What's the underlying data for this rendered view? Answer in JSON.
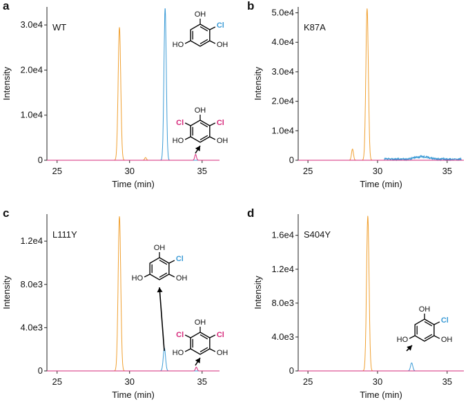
{
  "colors": {
    "orange": "#f0a030",
    "blue": "#3b9bd6",
    "magenta": "#d6287a",
    "axis": "#222222"
  },
  "molecules": {
    "monochloro": {
      "atoms": [
        "OH",
        "HO",
        "OH"
      ],
      "cl": "Cl"
    },
    "dichloro": {
      "atoms": [
        "OH",
        "HO",
        "OH"
      ],
      "cl1": "Cl",
      "cl2": "Cl"
    }
  },
  "chart_data": [
    {
      "panel": "a",
      "variant": "WT",
      "type": "line",
      "xlabel": "Time (min)",
      "ylabel": "Intensity",
      "xlim": [
        24.3,
        36.2
      ],
      "ylim": [
        0,
        34000
      ],
      "xticks": [
        25,
        30,
        35
      ],
      "xtick_labels": [
        "25",
        "30",
        "35"
      ],
      "yticks": [
        0,
        10000,
        20000,
        30000
      ],
      "ytick_labels": [
        "0",
        "1.0e4",
        "2.0e4",
        "3.0e4"
      ],
      "series": [
        {
          "name": "orange",
          "color": "#f0a030",
          "peaks": [
            [
              29.3,
              29500,
              0.09
            ],
            [
              31.1,
              600,
              0.06
            ]
          ]
        },
        {
          "name": "blue",
          "color": "#3b9bd6",
          "peaks": [
            [
              32.45,
              33800,
              0.08
            ]
          ]
        },
        {
          "name": "magenta",
          "color": "#d6287a",
          "peaks": [
            [
              34.55,
              1300,
              0.06
            ]
          ]
        }
      ]
    },
    {
      "panel": "b",
      "variant": "K87A",
      "type": "line",
      "xlabel": "Time (min)",
      "ylabel": "Intensity",
      "xlim": [
        24.3,
        36.2
      ],
      "ylim": [
        0,
        52000
      ],
      "xticks": [
        25,
        30,
        35
      ],
      "xtick_labels": [
        "25",
        "30",
        "35"
      ],
      "yticks": [
        0,
        10000,
        20000,
        30000,
        40000,
        50000
      ],
      "ytick_labels": [
        "0",
        "1.0e4",
        "2.0e4",
        "3.0e4",
        "4.0e4",
        "5.0e4"
      ],
      "series": [
        {
          "name": "orange",
          "color": "#f0a030",
          "peaks": [
            [
              29.25,
              51500,
              0.09
            ],
            [
              28.2,
              3800,
              0.07
            ]
          ]
        },
        {
          "name": "blue",
          "color": "#3b9bd6",
          "noise": [
            30.5,
            36.0,
            700
          ],
          "peaks": [
            [
              33.2,
              900,
              0.5
            ]
          ]
        },
        {
          "name": "magenta",
          "color": "#d6287a",
          "peaks": []
        }
      ]
    },
    {
      "panel": "c",
      "variant": "L111Y",
      "type": "line",
      "xlabel": "Time (min)",
      "ylabel": "Intensity",
      "xlim": [
        24.3,
        36.2
      ],
      "ylim": [
        0,
        14500
      ],
      "xticks": [
        25,
        30,
        35
      ],
      "xtick_labels": [
        "25",
        "30",
        "35"
      ],
      "yticks": [
        0,
        4000,
        8000,
        12000
      ],
      "ytick_labels": [
        "0",
        "4.0e3",
        "8.0e3",
        "1.2e4"
      ],
      "series": [
        {
          "name": "orange",
          "color": "#f0a030",
          "peaks": [
            [
              29.3,
              14300,
              0.09
            ]
          ]
        },
        {
          "name": "blue",
          "color": "#3b9bd6",
          "peaks": [
            [
              32.4,
              2100,
              0.08
            ]
          ]
        },
        {
          "name": "magenta",
          "color": "#d6287a",
          "peaks": [
            [
              34.6,
              350,
              0.06
            ]
          ]
        }
      ]
    },
    {
      "panel": "d",
      "variant": "S404Y",
      "type": "line",
      "xlabel": "Time (min)",
      "ylabel": "Intensity",
      "xlim": [
        24.3,
        36.2
      ],
      "ylim": [
        0,
        18500
      ],
      "xticks": [
        25,
        30,
        35
      ],
      "xtick_labels": [
        "25",
        "30",
        "35"
      ],
      "yticks": [
        0,
        4000,
        8000,
        12000,
        16000
      ],
      "ytick_labels": [
        "0",
        "4.0e3",
        "8.0e3",
        "1.2e4",
        "1.6e4"
      ],
      "series": [
        {
          "name": "orange",
          "color": "#f0a030",
          "peaks": [
            [
              29.3,
              18300,
              0.09
            ]
          ]
        },
        {
          "name": "blue",
          "color": "#3b9bd6",
          "peaks": [
            [
              32.45,
              950,
              0.08
            ]
          ]
        },
        {
          "name": "magenta",
          "color": "#d6287a",
          "peaks": []
        }
      ]
    }
  ]
}
